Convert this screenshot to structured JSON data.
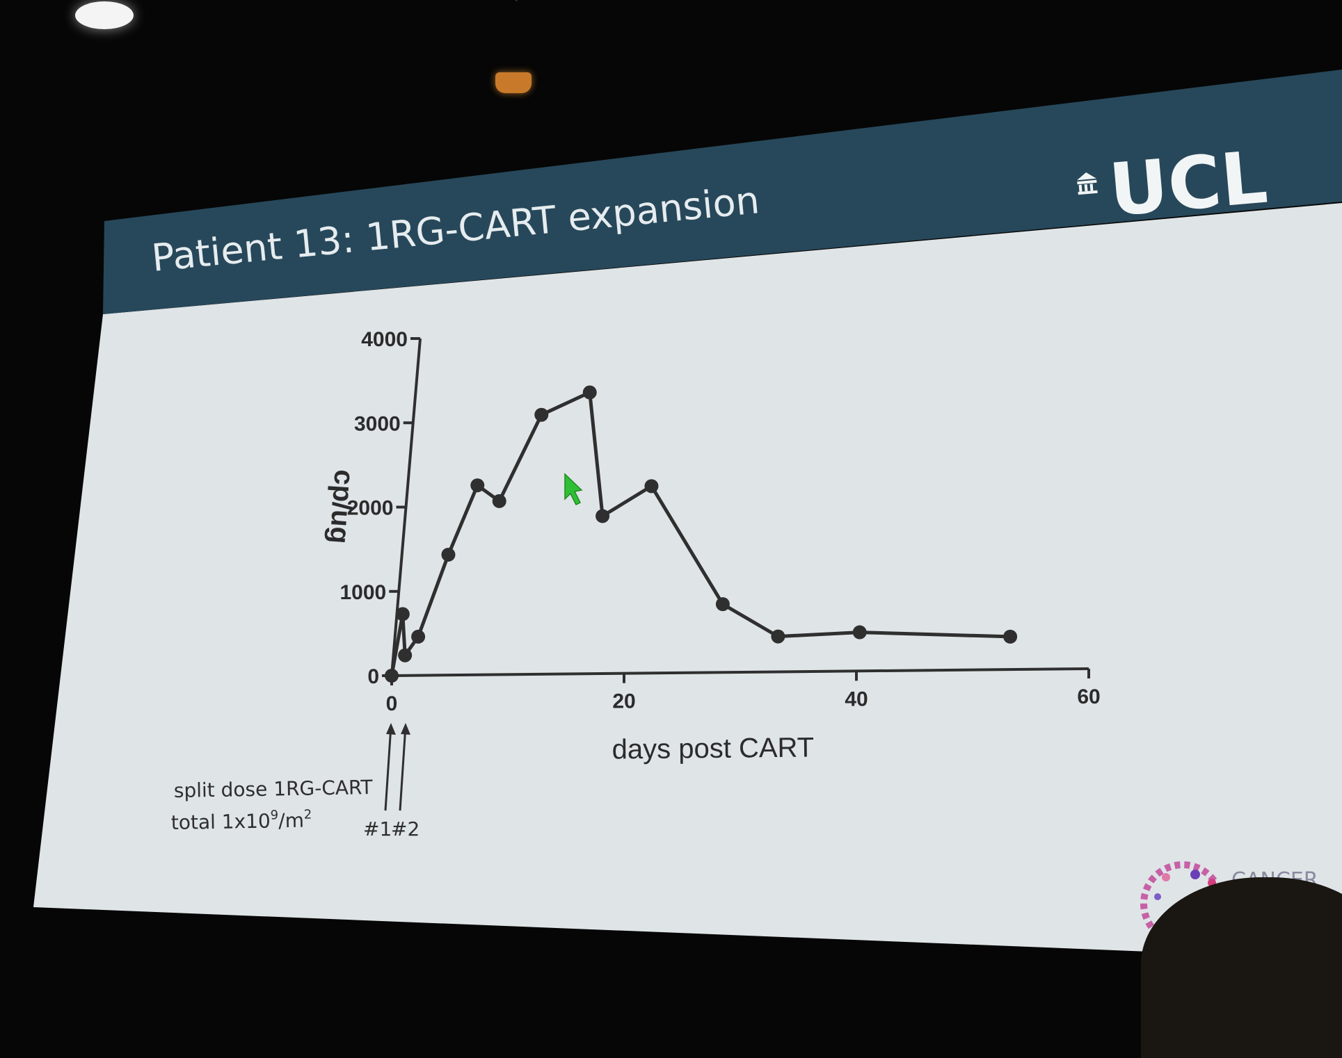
{
  "slide": {
    "title": "Patient 13: 1RG-CART expansion",
    "logo_text": "UCL",
    "partner_logo_text": "CANCER",
    "header_color": "#27485a",
    "slide_bg_color": "#dfe4e7"
  },
  "chart_data": {
    "type": "line",
    "title": "",
    "xlabel": "days post CART",
    "ylabel": "cp/ug",
    "xlim": [
      0,
      60
    ],
    "ylim": [
      0,
      4000
    ],
    "x_ticks": [
      0,
      20,
      40,
      60
    ],
    "y_ticks": [
      0,
      1000,
      2000,
      3000,
      4000
    ],
    "grid": false,
    "legend": "none",
    "series": [
      {
        "color": "#2f2f2f",
        "x": [
          0,
          0.5,
          1,
          2,
          4,
          6,
          8,
          11,
          15,
          17,
          21,
          28,
          33,
          40,
          53
        ],
        "y": [
          0,
          730,
          240,
          460,
          1430,
          2250,
          2060,
          3080,
          3340,
          1870,
          2220,
          810,
          420,
          460,
          390
        ]
      }
    ],
    "annotations": {
      "dose_line1": "split dose 1RG-CART",
      "dose_line2_prefix": "total 1x10",
      "dose_line2_sup": "9",
      "dose_line2_suffix": "/m",
      "dose_line2_sup2": "2",
      "arrow1_label": "#1",
      "arrow2_label": "#2",
      "arrow1_day": 0,
      "arrow2_day": 1,
      "cursor_color": "#2fbf35"
    }
  }
}
